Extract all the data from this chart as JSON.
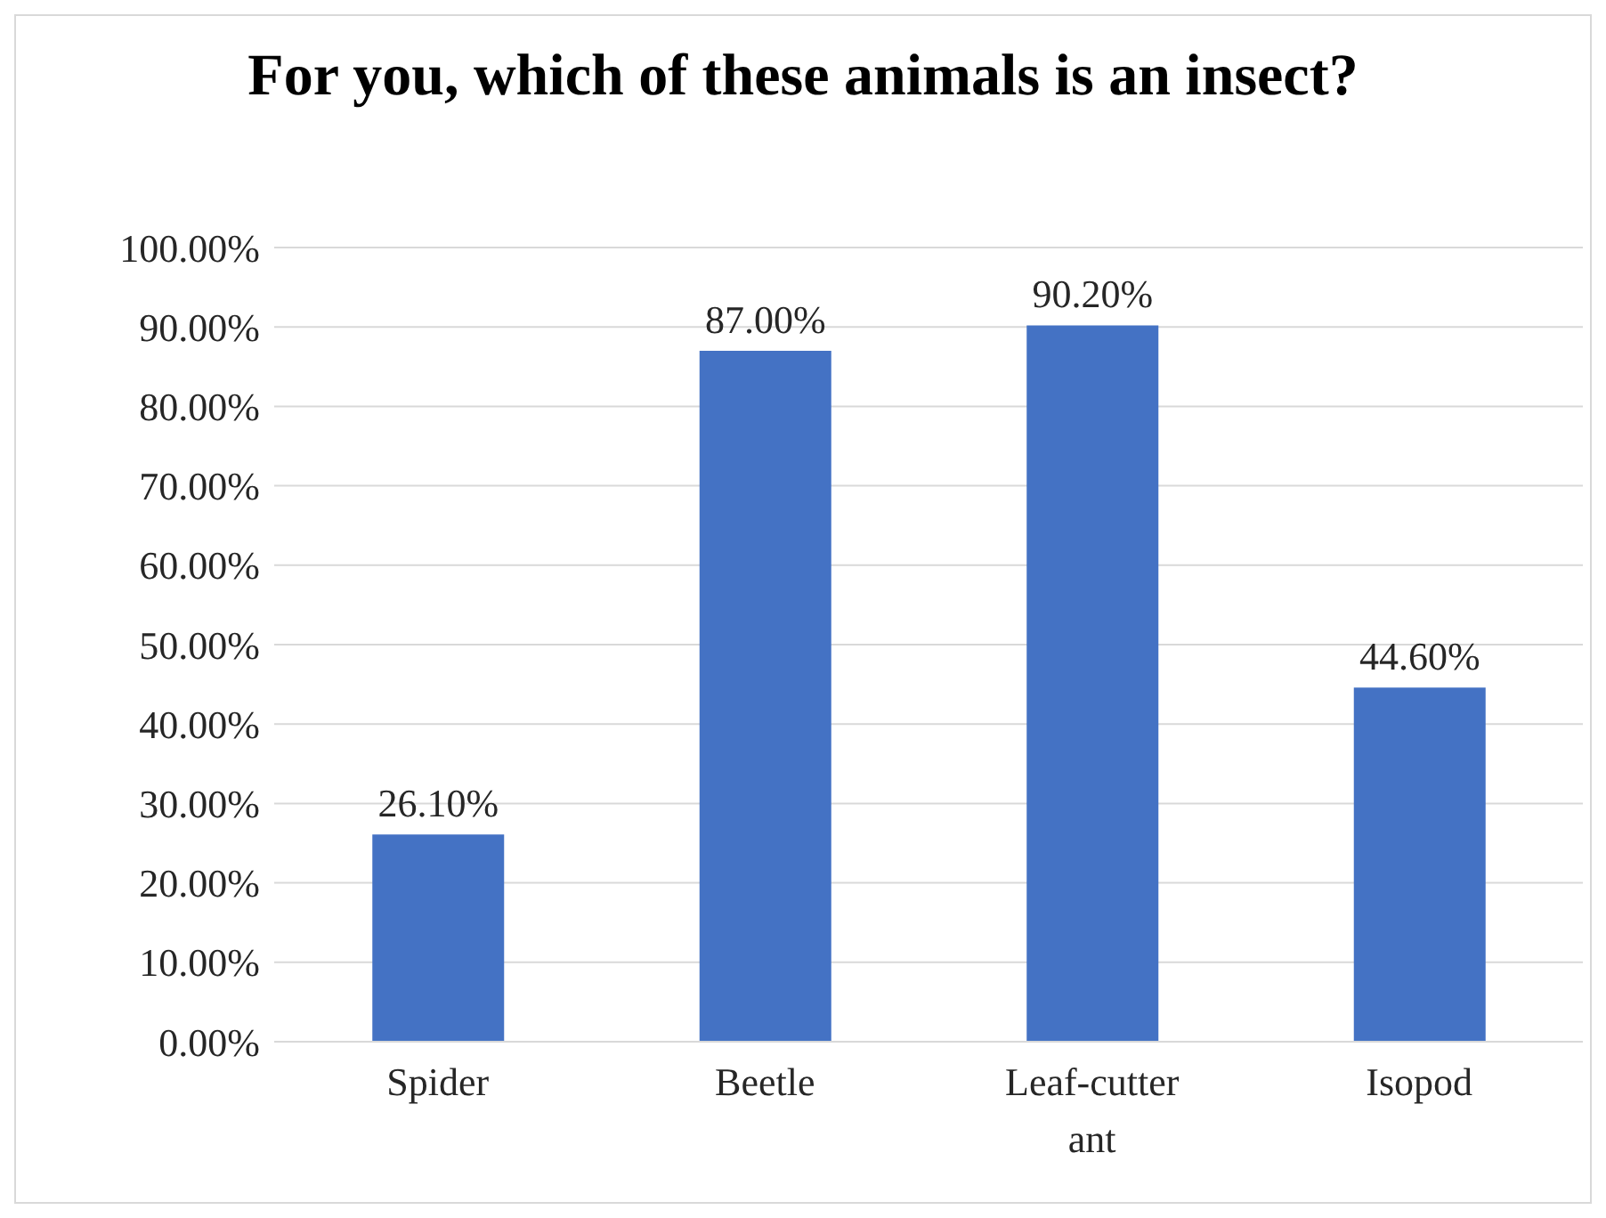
{
  "chart_data": {
    "type": "bar",
    "title": "For you, which of these animals is an insect?",
    "categories": [
      "Spider",
      "Beetle",
      "Leaf-cutter ant",
      "Isopod"
    ],
    "values": [
      26.1,
      87.0,
      90.2,
      44.6
    ],
    "value_labels": [
      "26.10%",
      "87.00%",
      "90.20%",
      "44.60%"
    ],
    "color": "#4472c4",
    "ylim": [
      0,
      100
    ],
    "yticks": [
      {
        "value": 0,
        "label": "0.00%"
      },
      {
        "value": 10,
        "label": "10.00%"
      },
      {
        "value": 20,
        "label": "20.00%"
      },
      {
        "value": 30,
        "label": "30.00%"
      },
      {
        "value": 40,
        "label": "40.00%"
      },
      {
        "value": 50,
        "label": "50.00%"
      },
      {
        "value": 60,
        "label": "60.00%"
      },
      {
        "value": 70,
        "label": "70.00%"
      },
      {
        "value": 80,
        "label": "80.00%"
      },
      {
        "value": 90,
        "label": "90.00%"
      },
      {
        "value": 100,
        "label": "100.00%"
      }
    ],
    "grid": "y",
    "legend": false
  }
}
